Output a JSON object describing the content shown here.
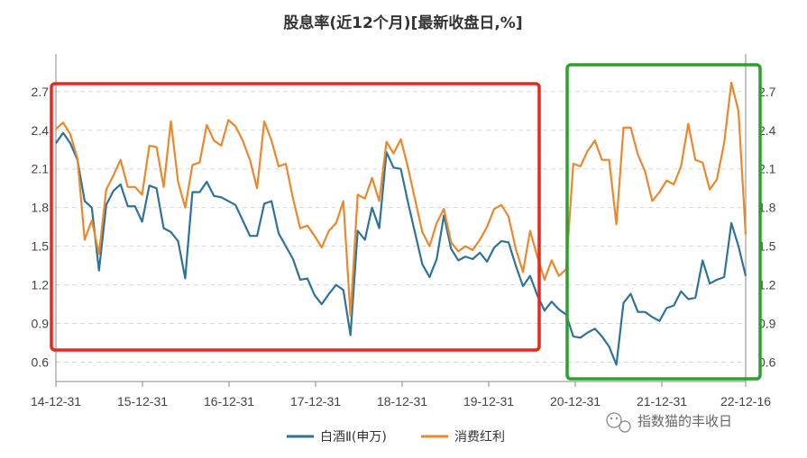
{
  "chart_data": {
    "type": "line",
    "title": "股息率(近12个月)[最新收盘日,%]",
    "x_tick_labels": [
      "14-12-31",
      "15-12-31",
      "16-12-31",
      "17-12-31",
      "18-12-31",
      "19-12-31",
      "20-12-31",
      "21-12-31",
      "22-12-16"
    ],
    "y_ticks": [
      0.6,
      0.9,
      1.2,
      1.5,
      1.8,
      2.1,
      2.4,
      2.7
    ],
    "y_tick_labels": [
      "0.6",
      "0.9",
      "1.2",
      "1.5",
      "1.8",
      "2.1",
      "2.4",
      "2.7"
    ],
    "ylim": [
      0.45,
      2.95
    ],
    "grid": "horizontal dashed",
    "legend_position": "bottom",
    "series": [
      {
        "name": "白酒Ⅱ(申万)",
        "color": "#2e7398",
        "values": [
          2.3,
          2.38,
          2.3,
          2.17,
          1.85,
          1.8,
          1.31,
          1.82,
          1.93,
          1.98,
          1.81,
          1.81,
          1.69,
          1.97,
          1.95,
          1.64,
          1.61,
          1.54,
          1.25,
          1.92,
          1.92,
          2.0,
          1.89,
          1.88,
          1.85,
          1.82,
          1.7,
          1.58,
          1.58,
          1.83,
          1.85,
          1.6,
          1.5,
          1.4,
          1.24,
          1.25,
          1.12,
          1.05,
          1.13,
          1.2,
          1.16,
          0.81,
          1.62,
          1.55,
          1.8,
          1.64,
          2.23,
          2.11,
          2.1,
          1.84,
          1.6,
          1.36,
          1.26,
          1.4,
          1.74,
          1.48,
          1.39,
          1.42,
          1.4,
          1.45,
          1.38,
          1.49,
          1.54,
          1.53,
          1.35,
          1.19,
          1.27,
          1.12,
          1.0,
          1.07,
          1.01,
          0.97,
          0.8,
          0.79,
          0.83,
          0.86,
          0.8,
          0.72,
          0.58,
          1.06,
          1.13,
          0.99,
          0.99,
          0.95,
          0.92,
          1.02,
          1.04,
          1.15,
          1.09,
          1.1,
          1.39,
          1.21,
          1.24,
          1.26,
          1.68,
          1.5,
          1.27
        ]
      },
      {
        "name": "消费红利",
        "color": "#e8892e",
        "values": [
          2.41,
          2.46,
          2.37,
          2.18,
          1.55,
          1.7,
          1.44,
          1.94,
          2.05,
          2.17,
          1.96,
          1.96,
          1.9,
          2.28,
          2.27,
          1.96,
          2.47,
          2.0,
          1.8,
          2.13,
          2.15,
          2.44,
          2.32,
          2.28,
          2.48,
          2.43,
          2.32,
          2.17,
          1.95,
          2.47,
          2.32,
          2.12,
          2.14,
          1.87,
          1.64,
          1.66,
          1.58,
          1.49,
          1.62,
          1.68,
          1.85,
          0.96,
          1.9,
          1.87,
          2.03,
          1.85,
          2.31,
          2.22,
          2.33,
          2.11,
          1.86,
          1.61,
          1.5,
          1.68,
          1.79,
          1.53,
          1.46,
          1.5,
          1.47,
          1.55,
          1.65,
          1.79,
          1.82,
          1.73,
          1.48,
          1.3,
          1.62,
          1.42,
          1.24,
          1.39,
          1.27,
          1.32,
          2.14,
          2.12,
          2.24,
          2.32,
          2.17,
          2.17,
          1.67,
          2.42,
          2.42,
          2.21,
          2.08,
          1.85,
          1.92,
          2.01,
          1.98,
          2.12,
          2.45,
          2.17,
          2.15,
          1.94,
          2.02,
          2.3,
          2.77,
          2.55,
          1.59
        ]
      }
    ],
    "annotations": [
      {
        "type": "rect",
        "color": "#e8281e"
      },
      {
        "type": "rect",
        "color": "#2ea02e"
      }
    ]
  },
  "watermark": {
    "text": "指数猫的丰收日",
    "icon": "wechat-icon"
  }
}
